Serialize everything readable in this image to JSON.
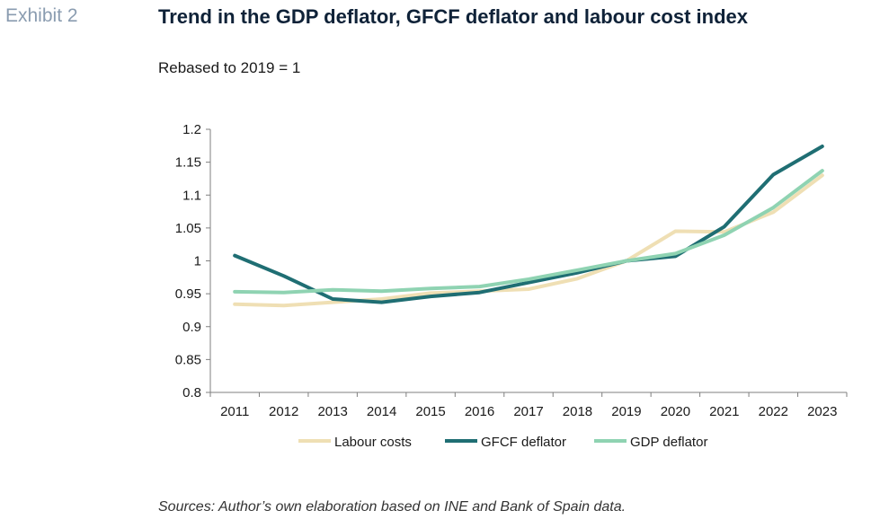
{
  "header": {
    "exhibit_label": "Exhibit 2",
    "title": "Trend in the GDP deflator, GFCF deflator and labour cost index",
    "subtitle": "Rebased to 2019 = 1"
  },
  "footer": {
    "source": "Sources: Author’s own elaboration based on INE and Bank of Spain data."
  },
  "chart_data": {
    "type": "line",
    "categories": [
      "2011",
      "2012",
      "2013",
      "2014",
      "2015",
      "2016",
      "2017",
      "2018",
      "2019",
      "2020",
      "2021",
      "2022",
      "2023"
    ],
    "series": [
      {
        "name": "Labour costs",
        "color": "#efdfb4",
        "values": [
          0.934,
          0.932,
          0.937,
          0.942,
          0.951,
          0.954,
          0.957,
          0.973,
          1.0,
          1.045,
          1.044,
          1.074,
          1.13
        ]
      },
      {
        "name": "GFCF deflator",
        "color": "#1f6e73",
        "values": [
          1.008,
          0.977,
          0.942,
          0.937,
          0.946,
          0.952,
          0.967,
          0.982,
          1.0,
          1.007,
          1.052,
          1.131,
          1.174
        ]
      },
      {
        "name": "GDP deflator",
        "color": "#8fd3b2",
        "values": [
          0.953,
          0.952,
          0.956,
          0.954,
          0.958,
          0.961,
          0.972,
          0.986,
          1.0,
          1.011,
          1.039,
          1.081,
          1.137
        ]
      }
    ],
    "y_ticks": [
      "1.2",
      "1.15",
      "1.1",
      "1.05",
      "1",
      "0.95",
      "0.9",
      "0.85",
      "0.8"
    ],
    "ylim": [
      0.8,
      1.2
    ],
    "legend_position": "bottom",
    "grid": false
  }
}
